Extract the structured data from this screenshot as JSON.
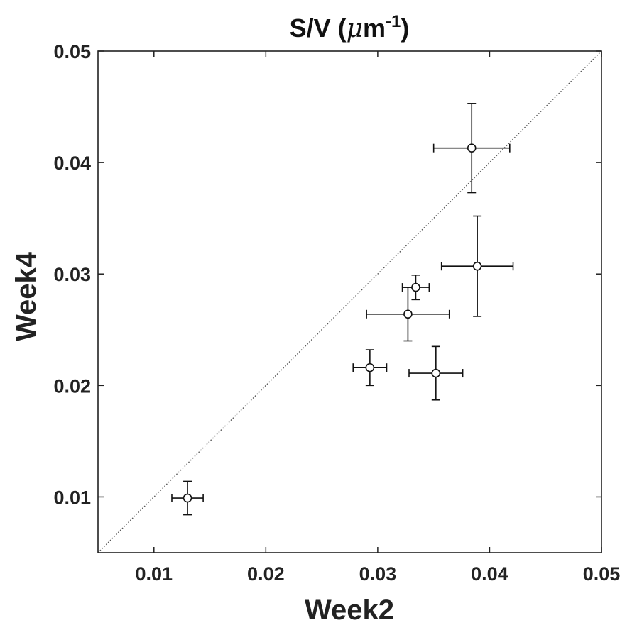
{
  "chart_data": {
    "type": "scatter",
    "title_main": "S/V (",
    "title_mu": "μ",
    "title_m": "m",
    "title_exp": "-1",
    "title_close": ")",
    "xlabel": "Week2",
    "ylabel": "Week4",
    "xlim": [
      0.005,
      0.05
    ],
    "ylim": [
      0.005,
      0.05
    ],
    "xticks": [
      0.01,
      0.02,
      0.03,
      0.04,
      0.05
    ],
    "yticks": [
      0.01,
      0.02,
      0.03,
      0.04,
      0.05
    ],
    "xtick_labels": [
      "0.01",
      "0.02",
      "0.03",
      "0.04",
      "0.05"
    ],
    "ytick_labels": [
      "0.01",
      "0.02",
      "0.03",
      "0.04",
      "0.05"
    ],
    "grid": false,
    "reference_line": "y = x (dotted)",
    "points": [
      {
        "x": 0.013,
        "y": 0.0099,
        "xerr": 0.0014,
        "yerr": 0.0015
      },
      {
        "x": 0.0293,
        "y": 0.0216,
        "xerr": 0.0015,
        "yerr": 0.0016
      },
      {
        "x": 0.0327,
        "y": 0.0264,
        "xerr": 0.0037,
        "yerr": 0.0024
      },
      {
        "x": 0.0334,
        "y": 0.0288,
        "xerr": 0.0012,
        "yerr": 0.0011
      },
      {
        "x": 0.0352,
        "y": 0.0211,
        "xerr": 0.0024,
        "yerr": 0.0024
      },
      {
        "x": 0.0384,
        "y": 0.0413,
        "xerr": 0.0034,
        "yerr": 0.004
      },
      {
        "x": 0.0389,
        "y": 0.0307,
        "xerr": 0.0032,
        "yerr": 0.0045
      }
    ],
    "colors": {
      "marker": "#111111",
      "axis": "#222222",
      "reference": "#555555"
    }
  }
}
